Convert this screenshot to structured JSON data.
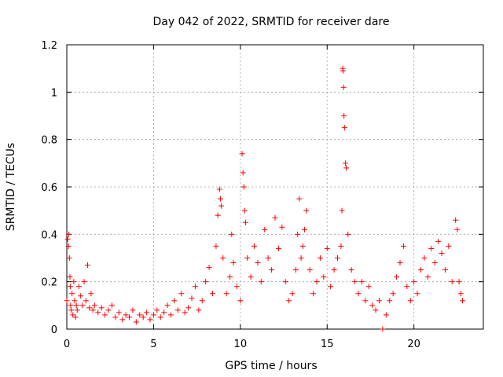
{
  "chart_data": {
    "type": "scatter",
    "title": "Day 042 of 2022, SRMTID for receiver dare",
    "xlabel": "GPS time / hours",
    "ylabel": "SRMTID / TECUs",
    "xlim": [
      0,
      24
    ],
    "ylim": [
      0,
      1.2
    ],
    "x_ticks": [
      0,
      5,
      10,
      15,
      20
    ],
    "x_tick_labels": [
      "0",
      "5",
      "10",
      "15",
      "20"
    ],
    "y_ticks": [
      0,
      0.2,
      0.4,
      0.6,
      0.8,
      1.0,
      1.2
    ],
    "y_tick_labels": [
      "0",
      "0.2",
      "0.4",
      "0.6",
      "0.8",
      "1",
      "1.2"
    ],
    "grid": true,
    "marker": "+",
    "series": [
      {
        "name": "SRMTID",
        "color": "#ff0000",
        "x": [
          0.0,
          0.05,
          0.1,
          0.12,
          0.15,
          0.18,
          0.2,
          0.22,
          0.25,
          0.3,
          0.35,
          0.4,
          0.45,
          0.5,
          0.55,
          0.6,
          0.7,
          0.8,
          0.9,
          1.0,
          1.1,
          1.2,
          1.3,
          1.4,
          1.5,
          1.6,
          1.8,
          2.0,
          2.2,
          2.4,
          2.6,
          2.8,
          3.0,
          3.2,
          3.4,
          3.6,
          3.8,
          4.0,
          4.2,
          4.4,
          4.6,
          4.8,
          5.0,
          5.2,
          5.4,
          5.6,
          5.8,
          6.0,
          6.2,
          6.4,
          6.6,
          6.8,
          7.0,
          7.2,
          7.4,
          7.6,
          7.8,
          8.0,
          8.2,
          8.4,
          8.6,
          8.7,
          8.8,
          8.85,
          8.9,
          9.0,
          9.2,
          9.4,
          9.5,
          9.6,
          9.8,
          10.0,
          10.1,
          10.15,
          10.2,
          10.25,
          10.3,
          10.4,
          10.6,
          10.8,
          11.0,
          11.2,
          11.4,
          11.6,
          11.8,
          12.0,
          12.2,
          12.4,
          12.6,
          12.8,
          13.0,
          13.2,
          13.3,
          13.4,
          13.5,
          13.6,
          13.7,
          13.8,
          14.0,
          14.2,
          14.4,
          14.6,
          14.8,
          15.0,
          15.2,
          15.4,
          15.6,
          15.8,
          15.85,
          15.9,
          15.92,
          15.95,
          15.97,
          16.0,
          16.05,
          16.1,
          16.2,
          16.4,
          16.6,
          16.8,
          17.0,
          17.2,
          17.4,
          17.6,
          17.8,
          18.0,
          18.2,
          18.4,
          18.6,
          18.8,
          19.0,
          19.2,
          19.4,
          19.6,
          19.8,
          20.0,
          20.2,
          20.4,
          20.6,
          20.8,
          21.0,
          21.2,
          21.4,
          21.6,
          21.8,
          22.0,
          22.2,
          22.4,
          22.5,
          22.6,
          22.7,
          22.8
        ],
        "y": [
          0.12,
          0.38,
          0.35,
          0.4,
          0.3,
          0.22,
          0.18,
          0.1,
          0.08,
          0.15,
          0.06,
          0.2,
          0.12,
          0.05,
          0.1,
          0.08,
          0.18,
          0.14,
          0.1,
          0.2,
          0.12,
          0.27,
          0.09,
          0.15,
          0.08,
          0.1,
          0.07,
          0.09,
          0.06,
          0.08,
          0.1,
          0.05,
          0.07,
          0.04,
          0.06,
          0.05,
          0.08,
          0.03,
          0.06,
          0.05,
          0.07,
          0.04,
          0.06,
          0.08,
          0.05,
          0.07,
          0.1,
          0.06,
          0.12,
          0.08,
          0.15,
          0.07,
          0.09,
          0.13,
          0.18,
          0.08,
          0.12,
          0.2,
          0.26,
          0.15,
          0.35,
          0.48,
          0.59,
          0.55,
          0.52,
          0.3,
          0.15,
          0.22,
          0.4,
          0.28,
          0.18,
          0.12,
          0.74,
          0.66,
          0.6,
          0.5,
          0.45,
          0.3,
          0.22,
          0.35,
          0.28,
          0.2,
          0.42,
          0.3,
          0.25,
          0.47,
          0.34,
          0.43,
          0.2,
          0.12,
          0.15,
          0.25,
          0.4,
          0.55,
          0.3,
          0.35,
          0.42,
          0.5,
          0.25,
          0.15,
          0.2,
          0.3,
          0.22,
          0.34,
          0.18,
          0.25,
          0.3,
          0.35,
          0.5,
          1.1,
          1.09,
          1.02,
          0.9,
          0.85,
          0.7,
          0.68,
          0.4,
          0.25,
          0.2,
          0.15,
          0.2,
          0.12,
          0.18,
          0.1,
          0.08,
          0.12,
          0.0,
          0.06,
          0.12,
          0.15,
          0.22,
          0.28,
          0.35,
          0.18,
          0.12,
          0.2,
          0.15,
          0.25,
          0.3,
          0.22,
          0.34,
          0.28,
          0.37,
          0.32,
          0.25,
          0.35,
          0.2,
          0.46,
          0.42,
          0.2,
          0.15,
          0.12
        ]
      }
    ]
  }
}
